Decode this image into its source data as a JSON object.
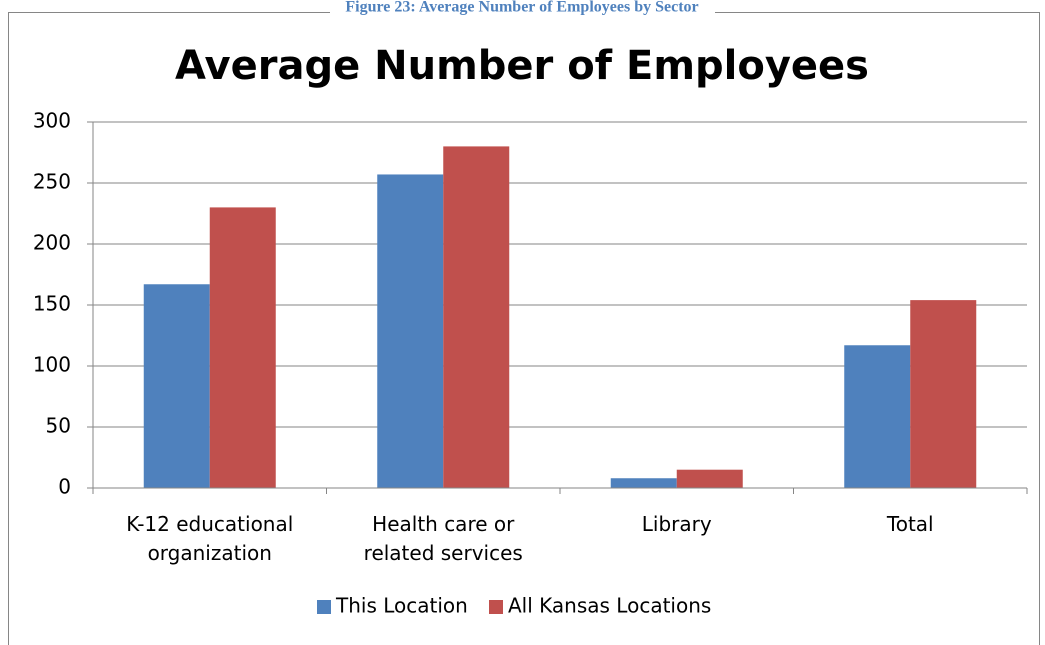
{
  "caption": "Figure 23: Average Number of Employees by Sector",
  "chart_data": {
    "type": "bar",
    "title": "Average Number of Employees",
    "categories": [
      "K-12 educational organization",
      "Health care or related services",
      "Library",
      "Total"
    ],
    "series": [
      {
        "name": "This Location",
        "color": "#4f81bd",
        "values": [
          167,
          257,
          8,
          117
        ]
      },
      {
        "name": "All Kansas Locations",
        "color": "#c0504d",
        "values": [
          230,
          280,
          15,
          154
        ]
      }
    ],
    "ylim": [
      0,
      300
    ],
    "yticks": [
      0,
      50,
      100,
      150,
      200,
      250,
      300
    ],
    "grid": true,
    "legend": "bottom"
  }
}
